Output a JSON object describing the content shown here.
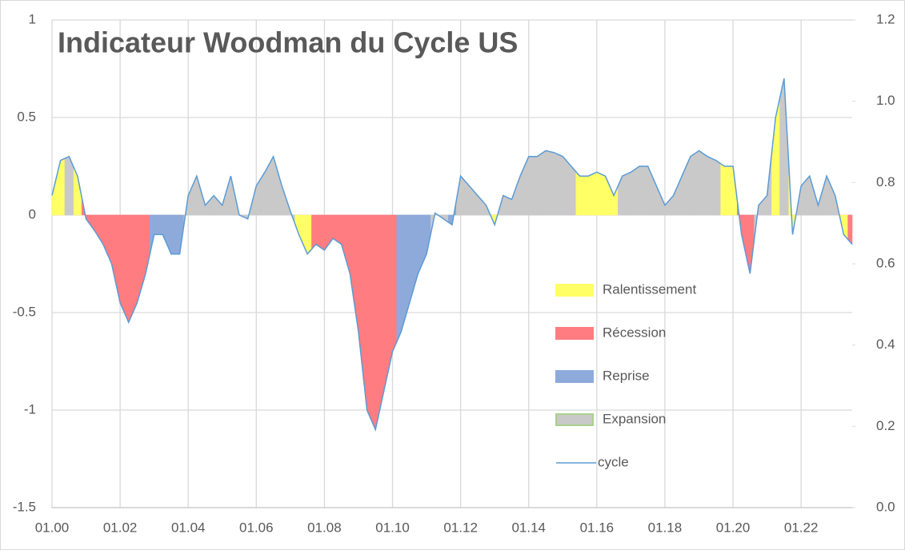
{
  "chart_data": {
    "type": "area",
    "title": "Indicateur Woodman du Cycle US",
    "legend": "right",
    "grid": true,
    "xlim": [
      2000,
      2023.5
    ],
    "xticks": [
      {
        "value": 2000,
        "label": "01.00"
      },
      {
        "value": 2002,
        "label": "01.02"
      },
      {
        "value": 2004,
        "label": "01.04"
      },
      {
        "value": 2006,
        "label": "01.06"
      },
      {
        "value": 2008,
        "label": "01.08"
      },
      {
        "value": 2010,
        "label": "01.10"
      },
      {
        "value": 2012,
        "label": "01.12"
      },
      {
        "value": 2014,
        "label": "01.14"
      },
      {
        "value": 2016,
        "label": "01.16"
      },
      {
        "value": 2018,
        "label": "01.18"
      },
      {
        "value": 2020,
        "label": "01.20"
      },
      {
        "value": 2022,
        "label": "01.22"
      }
    ],
    "ylim": [
      -1.5,
      1
    ],
    "yticks": [
      -1.5,
      -1,
      -0.5,
      0,
      0.5,
      1
    ],
    "y2lim": [
      0,
      1.2
    ],
    "y2ticks": [
      {
        "value": 0,
        "label": "0.0"
      },
      0.2,
      0.4,
      0.6,
      0.8,
      {
        "value": 1,
        "label": "1.0"
      },
      1.2
    ],
    "x": [
      2000,
      2000.25,
      2000.5,
      2000.75,
      2001,
      2001.25,
      2001.5,
      2001.75,
      2002,
      2002.25,
      2002.5,
      2002.75,
      2003,
      2003.25,
      2003.5,
      2003.75,
      2004,
      2004.25,
      2004.5,
      2004.75,
      2005,
      2005.25,
      2005.5,
      2005.75,
      2006,
      2006.25,
      2006.5,
      2006.75,
      2007,
      2007.25,
      2007.5,
      2007.75,
      2008,
      2008.25,
      2008.5,
      2008.75,
      2009,
      2009.25,
      2009.5,
      2009.75,
      2010,
      2010.25,
      2010.5,
      2010.75,
      2011,
      2011.25,
      2011.5,
      2011.75,
      2012,
      2012.25,
      2012.5,
      2012.75,
      2013,
      2013.25,
      2013.5,
      2013.75,
      2014,
      2014.25,
      2014.5,
      2014.75,
      2015,
      2015.25,
      2015.5,
      2015.75,
      2016,
      2016.25,
      2016.5,
      2016.75,
      2017,
      2017.25,
      2017.5,
      2017.75,
      2018,
      2018.25,
      2018.5,
      2018.75,
      2019,
      2019.25,
      2019.5,
      2019.75,
      2020,
      2020.25,
      2020.5,
      2020.75,
      2021,
      2021.25,
      2021.5,
      2021.75,
      2022,
      2022.25,
      2022.5,
      2022.75,
      2023,
      2023.25,
      2023.5
    ],
    "series": [
      {
        "name": "Ralentissement",
        "color": "#ffff66",
        "kind": "area",
        "values": [
          0.1,
          0.28,
          null,
          0.2,
          null,
          null,
          null,
          null,
          null,
          null,
          null,
          null,
          null,
          null,
          null,
          null,
          null,
          null,
          null,
          null,
          null,
          null,
          null,
          null,
          null,
          null,
          null,
          null,
          null,
          -0.1,
          -0.2,
          null,
          null,
          null,
          null,
          null,
          null,
          null,
          null,
          null,
          null,
          null,
          null,
          null,
          null,
          null,
          null,
          null,
          null,
          null,
          null,
          null,
          -0.05,
          null,
          null,
          null,
          null,
          null,
          null,
          null,
          null,
          null,
          0.2,
          0.2,
          0.22,
          0.2,
          0.1,
          null,
          null,
          null,
          null,
          null,
          null,
          null,
          null,
          null,
          null,
          null,
          null,
          0.25,
          0.25,
          null,
          null,
          null,
          null,
          0.5,
          null,
          -0.1,
          null,
          null,
          null,
          null,
          null,
          -0.1,
          null
        ]
      },
      {
        "name": "Récession",
        "color": "#ff7c80",
        "kind": "area",
        "values": [
          null,
          null,
          null,
          null,
          -0.02,
          -0.08,
          -0.15,
          -0.25,
          -0.45,
          -0.55,
          -0.45,
          -0.3,
          null,
          null,
          null,
          null,
          null,
          null,
          null,
          null,
          null,
          null,
          null,
          null,
          null,
          null,
          null,
          null,
          null,
          null,
          null,
          -0.15,
          -0.18,
          -0.12,
          -0.15,
          -0.3,
          -0.6,
          -1.0,
          -1.1,
          -0.9,
          -0.7,
          null,
          null,
          null,
          null,
          null,
          null,
          null,
          null,
          null,
          null,
          null,
          null,
          null,
          null,
          null,
          null,
          null,
          null,
          null,
          null,
          null,
          null,
          null,
          null,
          null,
          null,
          null,
          null,
          null,
          null,
          null,
          null,
          null,
          null,
          null,
          null,
          null,
          null,
          null,
          null,
          -0.1,
          -0.3,
          null,
          null,
          null,
          null,
          null,
          null,
          null,
          null,
          null,
          null,
          null,
          -0.15
        ]
      },
      {
        "name": "Reprise",
        "color": "#8eaadb",
        "kind": "area",
        "values": [
          null,
          null,
          null,
          null,
          null,
          null,
          null,
          null,
          null,
          null,
          null,
          null,
          -0.1,
          -0.1,
          -0.2,
          -0.2,
          null,
          null,
          null,
          null,
          null,
          null,
          null,
          null,
          null,
          null,
          null,
          null,
          null,
          null,
          null,
          null,
          null,
          null,
          null,
          null,
          null,
          null,
          null,
          null,
          null,
          -0.6,
          -0.45,
          -0.3,
          -0.2,
          null,
          null,
          -0.05,
          null,
          null,
          null,
          null,
          null,
          null,
          null,
          null,
          null,
          null,
          null,
          null,
          null,
          null,
          null,
          null,
          null,
          null,
          null,
          null,
          null,
          null,
          null,
          null,
          null,
          null,
          null,
          null,
          null,
          null,
          null,
          null,
          null,
          null,
          null,
          null,
          null,
          null,
          null,
          null,
          null,
          null,
          null,
          null,
          null,
          null,
          null
        ]
      },
      {
        "name": "Expansion",
        "color": "#c9c9c9",
        "edgecolor": "#a9d18e",
        "kind": "area",
        "values": [
          null,
          null,
          0.3,
          null,
          null,
          null,
          null,
          null,
          null,
          null,
          null,
          null,
          null,
          null,
          null,
          null,
          0.1,
          0.2,
          0.05,
          0.1,
          0.05,
          0.2,
          0,
          -0.02,
          0.15,
          0.22,
          0.3,
          0.15,
          0.02,
          null,
          null,
          null,
          null,
          null,
          null,
          null,
          null,
          null,
          null,
          null,
          null,
          null,
          null,
          null,
          null,
          0.01,
          -0.02,
          null,
          0.2,
          0.15,
          0.1,
          0.05,
          null,
          0.1,
          0.08,
          0.2,
          0.3,
          0.3,
          0.33,
          0.32,
          0.3,
          0.25,
          null,
          null,
          null,
          null,
          null,
          0.2,
          0.22,
          0.25,
          0.25,
          0.15,
          0.05,
          0.1,
          0.2,
          0.3,
          0.33,
          0.3,
          0.28,
          null,
          null,
          null,
          null,
          0.05,
          0.1,
          null,
          0.7,
          null,
          0.15,
          0.2,
          0.05,
          0.2,
          0.1,
          null,
          null
        ]
      },
      {
        "name": "cycle",
        "color": "#5b9bd5",
        "kind": "line",
        "values": [
          0.1,
          0.28,
          0.3,
          0.2,
          -0.02,
          -0.08,
          -0.15,
          -0.25,
          -0.45,
          -0.55,
          -0.45,
          -0.3,
          -0.1,
          -0.1,
          -0.2,
          -0.2,
          0.1,
          0.2,
          0.05,
          0.1,
          0.05,
          0.2,
          0,
          -0.02,
          0.15,
          0.22,
          0.3,
          0.15,
          0.02,
          -0.1,
          -0.2,
          -0.15,
          -0.18,
          -0.12,
          -0.15,
          -0.3,
          -0.6,
          -1.0,
          -1.1,
          -0.9,
          -0.7,
          -0.6,
          -0.45,
          -0.3,
          -0.2,
          0.01,
          -0.02,
          -0.05,
          0.2,
          0.15,
          0.1,
          0.05,
          -0.05,
          0.1,
          0.08,
          0.2,
          0.3,
          0.3,
          0.33,
          0.32,
          0.3,
          0.25,
          0.2,
          0.2,
          0.22,
          0.2,
          0.1,
          0.2,
          0.22,
          0.25,
          0.25,
          0.15,
          0.05,
          0.1,
          0.2,
          0.3,
          0.33,
          0.3,
          0.28,
          0.25,
          0.25,
          -0.1,
          -0.3,
          0.05,
          0.1,
          0.5,
          0.7,
          -0.1,
          0.15,
          0.2,
          0.05,
          0.2,
          0.1,
          -0.1,
          -0.15
        ]
      }
    ]
  }
}
